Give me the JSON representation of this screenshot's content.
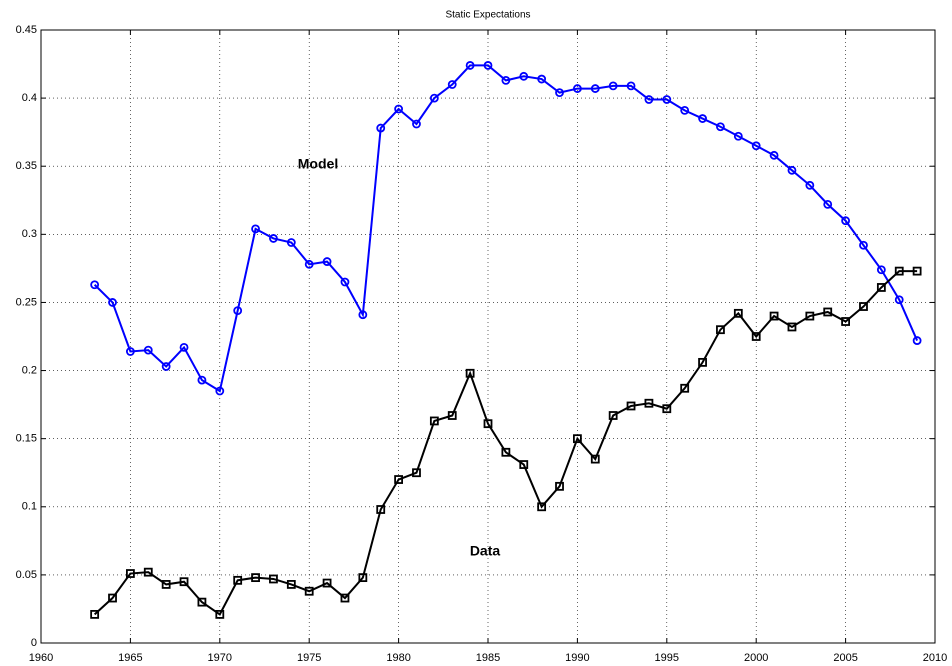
{
  "chart_data": {
    "type": "line",
    "title": "Static Expectations",
    "x": [
      1963,
      1964,
      1965,
      1966,
      1967,
      1968,
      1969,
      1970,
      1971,
      1972,
      1973,
      1974,
      1975,
      1976,
      1977,
      1978,
      1979,
      1980,
      1981,
      1982,
      1983,
      1984,
      1985,
      1986,
      1987,
      1988,
      1989,
      1990,
      1991,
      1992,
      1993,
      1994,
      1995,
      1996,
      1997,
      1998,
      1999,
      2000,
      2001,
      2002,
      2003,
      2004,
      2005,
      2006,
      2007,
      2008,
      2009
    ],
    "series": [
      {
        "name": "Model",
        "color": "#0000ff",
        "marker": "circle",
        "values": [
          0.263,
          0.25,
          0.214,
          0.215,
          0.203,
          0.217,
          0.193,
          0.185,
          0.244,
          0.304,
          0.297,
          0.294,
          0.278,
          0.28,
          0.265,
          0.241,
          0.378,
          0.392,
          0.381,
          0.4,
          0.41,
          0.424,
          0.424,
          0.413,
          0.416,
          0.414,
          0.404,
          0.407,
          0.407,
          0.409,
          0.409,
          0.399,
          0.399,
          0.391,
          0.385,
          0.379,
          0.372,
          0.365,
          0.358,
          0.347,
          0.336,
          0.322,
          0.31,
          0.292,
          0.274,
          0.252,
          0.222
        ]
      },
      {
        "name": "Data",
        "color": "#000000",
        "marker": "square",
        "values": [
          0.021,
          0.033,
          0.051,
          0.052,
          0.043,
          0.045,
          0.03,
          0.021,
          0.046,
          0.048,
          0.047,
          0.043,
          0.038,
          0.044,
          0.033,
          0.048,
          0.098,
          0.12,
          0.125,
          0.163,
          0.167,
          0.198,
          0.161,
          0.14,
          0.131,
          0.1,
          0.115,
          0.15,
          0.135,
          0.167,
          0.174,
          0.176,
          0.172,
          0.187,
          0.206,
          0.23,
          0.242,
          0.225,
          0.24,
          0.232,
          0.24,
          0.243,
          0.236,
          0.247,
          0.261,
          0.273,
          0.273
        ]
      }
    ],
    "xlim": [
      1960,
      2010
    ],
    "xticks": [
      1960,
      1965,
      1970,
      1975,
      1980,
      1985,
      1990,
      1995,
      2000,
      2005,
      2010
    ],
    "ylim": [
      0,
      0.45
    ],
    "yticks": [
      0,
      0.05,
      0.1,
      0.15,
      0.2,
      0.25,
      0.3,
      0.35,
      0.4,
      0.45
    ],
    "grid": true
  }
}
